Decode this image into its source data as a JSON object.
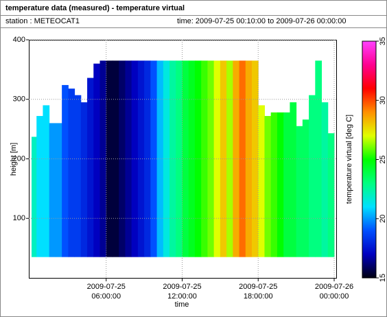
{
  "header": {
    "title": "temperature data (measured) - temperature virtual",
    "station": "station : METEOCAT1",
    "time": "time: 2009-07-25 00:10:00 to 2009-07-26 00:00:00"
  },
  "chart_data": {
    "type": "heatmap",
    "x_label": "time",
    "y_label": "height [m]",
    "colorbar_label": "temperature virtual [deg C]",
    "xlim": [
      "2009-07-25 00:00:00",
      "2009-07-26 00:00:00"
    ],
    "xticks": [
      {
        "value": "2009-07-25 06:00:00",
        "label": [
          "2009-07-25",
          "06:00:00"
        ]
      },
      {
        "value": "2009-07-25 12:00:00",
        "label": [
          "2009-07-25",
          "12:00:00"
        ]
      },
      {
        "value": "2009-07-25 18:00:00",
        "label": [
          "2009-07-25",
          "18:00:00"
        ]
      },
      {
        "value": "2009-07-26 00:00:00",
        "label": [
          "2009-07-26",
          "00:00:00"
        ]
      }
    ],
    "ylim": [
      0,
      400
    ],
    "yticks": [
      100,
      200,
      300,
      400
    ],
    "zlim": [
      15,
      35
    ],
    "zticks": [
      15,
      20,
      25,
      30,
      35
    ],
    "colormap": [
      "#000010",
      "#0000c0",
      "#0050ff",
      "#00e0ff",
      "#00ff80",
      "#00ff00",
      "#e0ff00",
      "#ff9000",
      "#ff0000",
      "#ff0090",
      "#ff40ff"
    ],
    "grid": true,
    "bottom": 35,
    "x": [
      "2009-07-25 00:30:00",
      "2009-07-25 01:00:00",
      "2009-07-25 01:30:00",
      "2009-07-25 02:00:00",
      "2009-07-25 02:30:00",
      "2009-07-25 03:00:00",
      "2009-07-25 03:30:00",
      "2009-07-25 04:00:00",
      "2009-07-25 04:30:00",
      "2009-07-25 05:00:00",
      "2009-07-25 05:30:00",
      "2009-07-25 06:00:00",
      "2009-07-25 06:30:00",
      "2009-07-25 07:00:00",
      "2009-07-25 07:30:00",
      "2009-07-25 08:00:00",
      "2009-07-25 08:30:00",
      "2009-07-25 09:00:00",
      "2009-07-25 09:30:00",
      "2009-07-25 10:00:00",
      "2009-07-25 10:30:00",
      "2009-07-25 11:00:00",
      "2009-07-25 11:30:00",
      "2009-07-25 12:00:00",
      "2009-07-25 12:30:00",
      "2009-07-25 13:00:00",
      "2009-07-25 13:30:00",
      "2009-07-25 14:00:00",
      "2009-07-25 14:30:00",
      "2009-07-25 15:00:00",
      "2009-07-25 15:30:00",
      "2009-07-25 16:00:00",
      "2009-07-25 16:30:00",
      "2009-07-25 17:00:00",
      "2009-07-25 17:30:00",
      "2009-07-25 18:00:00",
      "2009-07-25 18:30:00",
      "2009-07-25 19:00:00",
      "2009-07-25 19:30:00",
      "2009-07-25 20:00:00",
      "2009-07-25 20:30:00",
      "2009-07-25 21:00:00",
      "2009-07-25 21:30:00",
      "2009-07-25 22:00:00",
      "2009-07-25 22:30:00",
      "2009-07-25 23:00:00",
      "2009-07-25 23:30:00",
      "2009-07-26 00:00:00"
    ],
    "top": [
      237,
      272,
      290,
      260,
      260,
      324,
      318,
      307,
      295,
      336,
      360,
      365,
      365,
      365,
      365,
      365,
      365,
      365,
      365,
      365,
      365,
      365,
      365,
      365,
      365,
      365,
      365,
      365,
      365,
      365,
      365,
      365,
      365,
      365,
      365,
      365,
      290,
      272,
      278,
      278,
      278,
      295,
      255,
      266,
      307,
      365,
      295,
      243
    ],
    "values": [
      22,
      21,
      21,
      20,
      20,
      19,
      18.5,
      18.5,
      18,
      17.5,
      17,
      16.5,
      15.5,
      15.5,
      16,
      16.5,
      17,
      17.5,
      18,
      19,
      20.5,
      21.5,
      22.5,
      23,
      24,
      24.5,
      25,
      25.5,
      26,
      27,
      28,
      26.5,
      28.5,
      29.5,
      28.5,
      28,
      27,
      26,
      25.5,
      25,
      24,
      24,
      23.5,
      23.5,
      23,
      23,
      22.5,
      23
    ]
  }
}
